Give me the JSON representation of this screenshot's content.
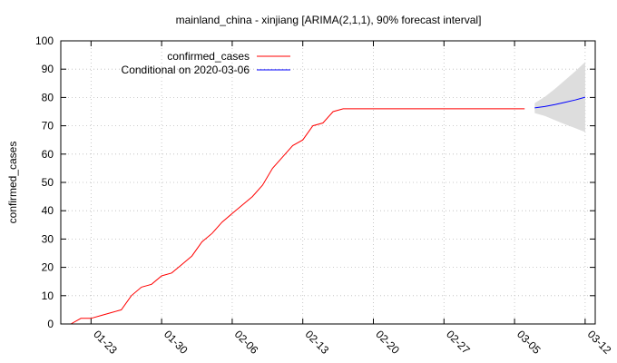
{
  "chart_data": {
    "type": "line",
    "title": "mainland_china - xinjiang [ARIMA(2,1,1), 90% forecast interval]",
    "ylabel": "confirmed_cases",
    "xlabel": "",
    "ylim": [
      0,
      100
    ],
    "yticks": [
      0,
      10,
      20,
      30,
      40,
      50,
      60,
      70,
      80,
      90,
      100
    ],
    "grid": true,
    "legend_position": "top-left",
    "x_axis": {
      "type": "date",
      "min": "2020-01-20",
      "max": "2020-03-13",
      "ticks": [
        {
          "date": "2020-01-23",
          "label": "01-23"
        },
        {
          "date": "2020-01-30",
          "label": "01-30"
        },
        {
          "date": "2020-02-06",
          "label": "02-06"
        },
        {
          "date": "2020-02-13",
          "label": "02-13"
        },
        {
          "date": "2020-02-20",
          "label": "02-20"
        },
        {
          "date": "2020-02-27",
          "label": "02-27"
        },
        {
          "date": "2020-03-05",
          "label": "03-05"
        },
        {
          "date": "2020-03-12",
          "label": "03-12"
        }
      ]
    },
    "series": [
      {
        "name": "confirmed_cases",
        "color": "#ff0000",
        "points": [
          [
            "2020-01-21",
            0
          ],
          [
            "2020-01-22",
            2
          ],
          [
            "2020-01-23",
            2
          ],
          [
            "2020-01-24",
            3
          ],
          [
            "2020-01-25",
            4
          ],
          [
            "2020-01-26",
            5
          ],
          [
            "2020-01-27",
            10
          ],
          [
            "2020-01-28",
            13
          ],
          [
            "2020-01-29",
            14
          ],
          [
            "2020-01-30",
            17
          ],
          [
            "2020-01-31",
            18
          ],
          [
            "2020-02-01",
            21
          ],
          [
            "2020-02-02",
            24
          ],
          [
            "2020-02-03",
            29
          ],
          [
            "2020-02-04",
            32
          ],
          [
            "2020-02-05",
            36
          ],
          [
            "2020-02-06",
            39
          ],
          [
            "2020-02-07",
            42
          ],
          [
            "2020-02-08",
            45
          ],
          [
            "2020-02-09",
            49
          ],
          [
            "2020-02-10",
            55
          ],
          [
            "2020-02-11",
            59
          ],
          [
            "2020-02-12",
            63
          ],
          [
            "2020-02-13",
            65
          ],
          [
            "2020-02-14",
            70
          ],
          [
            "2020-02-15",
            71
          ],
          [
            "2020-02-16",
            75
          ],
          [
            "2020-02-17",
            76
          ],
          [
            "2020-02-18",
            76
          ],
          [
            "2020-02-19",
            76
          ],
          [
            "2020-02-20",
            76
          ],
          [
            "2020-02-21",
            76
          ],
          [
            "2020-02-22",
            76
          ],
          [
            "2020-02-23",
            76
          ],
          [
            "2020-02-24",
            76
          ],
          [
            "2020-02-25",
            76
          ],
          [
            "2020-02-26",
            76
          ],
          [
            "2020-02-27",
            76
          ],
          [
            "2020-02-28",
            76
          ],
          [
            "2020-02-29",
            76
          ],
          [
            "2020-03-01",
            76
          ],
          [
            "2020-03-02",
            76
          ],
          [
            "2020-03-03",
            76
          ],
          [
            "2020-03-04",
            76
          ],
          [
            "2020-03-05",
            76
          ],
          [
            "2020-03-06",
            76
          ]
        ]
      },
      {
        "name": "Conditional on 2020-03-06",
        "color": "#0000ff",
        "points": [
          [
            "2020-03-07",
            76.3
          ],
          [
            "2020-03-08",
            76.8
          ],
          [
            "2020-03-09",
            77.5
          ],
          [
            "2020-03-10",
            78.3
          ],
          [
            "2020-03-11",
            79.1
          ],
          [
            "2020-03-12",
            80.1
          ]
        ],
        "interval": {
          "color": "#dddddd",
          "lower": [
            [
              "2020-03-07",
              74.5
            ],
            [
              "2020-03-08",
              73.5
            ],
            [
              "2020-03-09",
              72.0
            ],
            [
              "2020-03-10",
              70.5
            ],
            [
              "2020-03-11",
              69.2
            ],
            [
              "2020-03-12",
              67.8
            ]
          ],
          "upper": [
            [
              "2020-03-07",
              78.0
            ],
            [
              "2020-03-08",
              80.2
            ],
            [
              "2020-03-09",
              83.0
            ],
            [
              "2020-03-10",
              86.1
            ],
            [
              "2020-03-11",
              89.2
            ],
            [
              "2020-03-12",
              92.5
            ]
          ]
        }
      }
    ]
  }
}
